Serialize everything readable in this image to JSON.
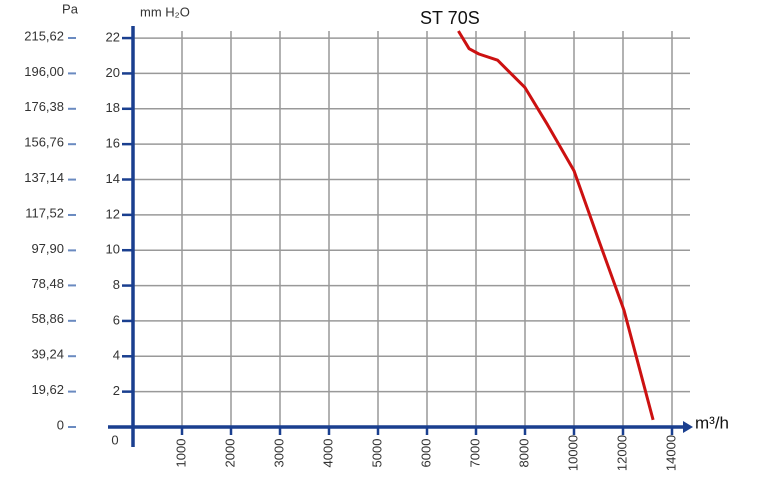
{
  "chart_data": {
    "type": "line",
    "annotation": "ST 70S",
    "xlabel": "m³/h",
    "ylabel": "mm H₂O",
    "y2label": "Pa",
    "xticks": [
      0,
      1000,
      2000,
      3000,
      4000,
      5000,
      6000,
      7000,
      8000,
      10000,
      12000,
      14000
    ],
    "xlim": [
      0,
      14000
    ],
    "ylim": [
      0,
      22.4
    ],
    "yticks": [
      2,
      4,
      6,
      8,
      10,
      12,
      14,
      16,
      18,
      20,
      22
    ],
    "y2lim": [
      0,
      219.5
    ],
    "y2ticks": [
      0,
      {
        "value": 19.62,
        "label": "19,62"
      },
      {
        "value": 39.24,
        "label": "39,24"
      },
      {
        "value": 58.86,
        "label": "58,86"
      },
      {
        "value": 78.48,
        "label": "78,48"
      },
      {
        "value": 97.9,
        "label": "97,90"
      },
      {
        "value": 117.52,
        "label": "117,52"
      },
      {
        "value": 137.14,
        "label": "137,14"
      },
      {
        "value": 156.76,
        "label": "156,76"
      },
      {
        "value": 176.38,
        "label": "176,38"
      },
      {
        "value": 196.0,
        "label": "196,00"
      },
      {
        "value": 215.62,
        "label": "215,62"
      }
    ],
    "grid": true,
    "series": [
      {
        "name": "ST 70S",
        "color": "#cc1111",
        "x": [
          6640,
          6860,
          7060,
          7440,
          8000,
          8920,
          10000,
          11000,
          12040,
          13230
        ],
        "values": [
          22.4,
          21.4,
          21.1,
          20.75,
          19.2,
          17.1,
          14.5,
          10.6,
          6.6,
          0.4
        ]
      }
    ]
  }
}
